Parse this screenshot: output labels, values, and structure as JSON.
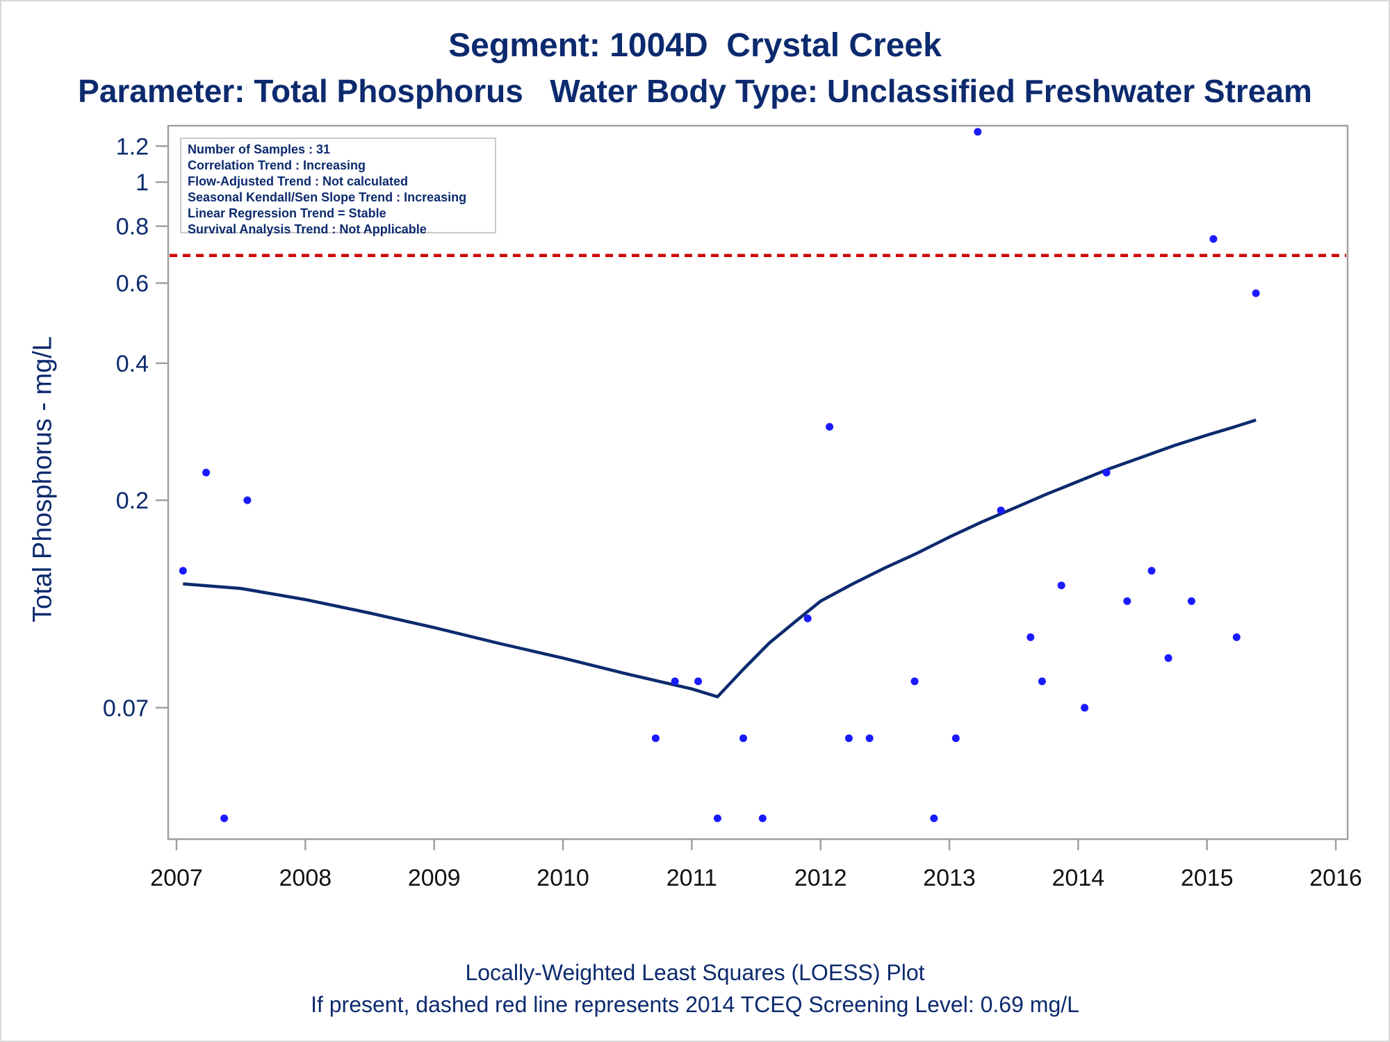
{
  "title": "Segment: 1004D  Crystal Creek",
  "subtitle": "Parameter: Total Phosphorus   Water Body Type: Unclassified Freshwater Stream",
  "footnotes": [
    "Locally-Weighted Least Squares (LOESS) Plot",
    "If present, dashed red line represents 2014 TCEQ Screening Level: 0.69 mg/L"
  ],
  "stats": [
    "Number of Samples : 31",
    "Correlation Trend : Increasing",
    "Flow-Adjusted Trend : Not calculated",
    "Seasonal Kendall/Sen Slope Trend : Increasing",
    "Linear Regression Trend = Stable",
    "Survival Analysis Trend : Not Applicable"
  ],
  "colors": {
    "text": "#0c2a6e",
    "points": "#1a1aff",
    "loess": "#0c2a6e",
    "screening_line": "#cc0000",
    "frame": "#a0a0a0"
  },
  "chart_data": {
    "type": "scatter",
    "title": "Segment: 1004D  Crystal Creek",
    "subtitle": "Parameter: Total Phosphorus   Water Body Type: Unclassified Freshwater Stream",
    "xlabel": "",
    "ylabel": "Total Phosphorus - mg/L",
    "y_scale": "log",
    "xlim": [
      2007,
      2016
    ],
    "ylim": [
      0.036,
      1.33
    ],
    "x_ticks": [
      2007,
      2008,
      2009,
      2010,
      2011,
      2012,
      2013,
      2014,
      2015,
      2016
    ],
    "y_ticks": [
      0.07,
      0.2,
      0.4,
      0.6,
      0.8,
      1,
      1.2
    ],
    "y_tick_labels": [
      "0.07",
      "0.2",
      "0.4",
      "0.6",
      "0.8",
      "1",
      "1.2"
    ],
    "grid": false,
    "legend": "top-left",
    "screening_level": 0.69,
    "series": [
      {
        "type": "scatter",
        "points": [
          [
            2007.05,
            0.14
          ],
          [
            2007.23,
            0.23
          ],
          [
            2007.37,
            0.04
          ],
          [
            2007.55,
            0.2
          ],
          [
            2010.72,
            0.06
          ],
          [
            2010.87,
            0.08
          ],
          [
            2011.05,
            0.08
          ],
          [
            2011.2,
            0.04
          ],
          [
            2011.4,
            0.06
          ],
          [
            2011.55,
            0.04
          ],
          [
            2011.9,
            0.11
          ],
          [
            2012.07,
            0.29
          ],
          [
            2012.22,
            0.06
          ],
          [
            2012.38,
            0.06
          ],
          [
            2012.73,
            0.08
          ],
          [
            2012.88,
            0.04
          ],
          [
            2013.05,
            0.06
          ],
          [
            2013.22,
            1.29
          ],
          [
            2013.4,
            0.19
          ],
          [
            2013.63,
            0.1
          ],
          [
            2013.72,
            0.08
          ],
          [
            2013.87,
            0.13
          ],
          [
            2014.05,
            0.07
          ],
          [
            2014.22,
            0.23
          ],
          [
            2014.38,
            0.12
          ],
          [
            2014.57,
            0.14
          ],
          [
            2014.7,
            0.09
          ],
          [
            2014.88,
            0.12
          ],
          [
            2015.05,
            0.75
          ],
          [
            2015.23,
            0.1
          ],
          [
            2015.38,
            0.57
          ]
        ]
      },
      {
        "type": "line",
        "points": [
          [
            2007.05,
            0.131
          ],
          [
            2007.5,
            0.128
          ],
          [
            2008.0,
            0.121
          ],
          [
            2008.5,
            0.113
          ],
          [
            2009.0,
            0.105
          ],
          [
            2009.5,
            0.097
          ],
          [
            2010.0,
            0.09
          ],
          [
            2010.5,
            0.083
          ],
          [
            2011.0,
            0.077
          ],
          [
            2011.2,
            0.074
          ],
          [
            2011.4,
            0.085
          ],
          [
            2011.6,
            0.097
          ],
          [
            2011.8,
            0.108
          ],
          [
            2012.0,
            0.12
          ],
          [
            2012.25,
            0.131
          ],
          [
            2012.5,
            0.142
          ],
          [
            2012.75,
            0.153
          ],
          [
            2013.0,
            0.166
          ],
          [
            2013.25,
            0.179
          ],
          [
            2013.5,
            0.192
          ],
          [
            2013.75,
            0.206
          ],
          [
            2014.0,
            0.22
          ],
          [
            2014.25,
            0.235
          ],
          [
            2014.5,
            0.249
          ],
          [
            2014.75,
            0.264
          ],
          [
            2015.0,
            0.278
          ],
          [
            2015.2,
            0.289
          ],
          [
            2015.38,
            0.3
          ]
        ]
      }
    ]
  }
}
